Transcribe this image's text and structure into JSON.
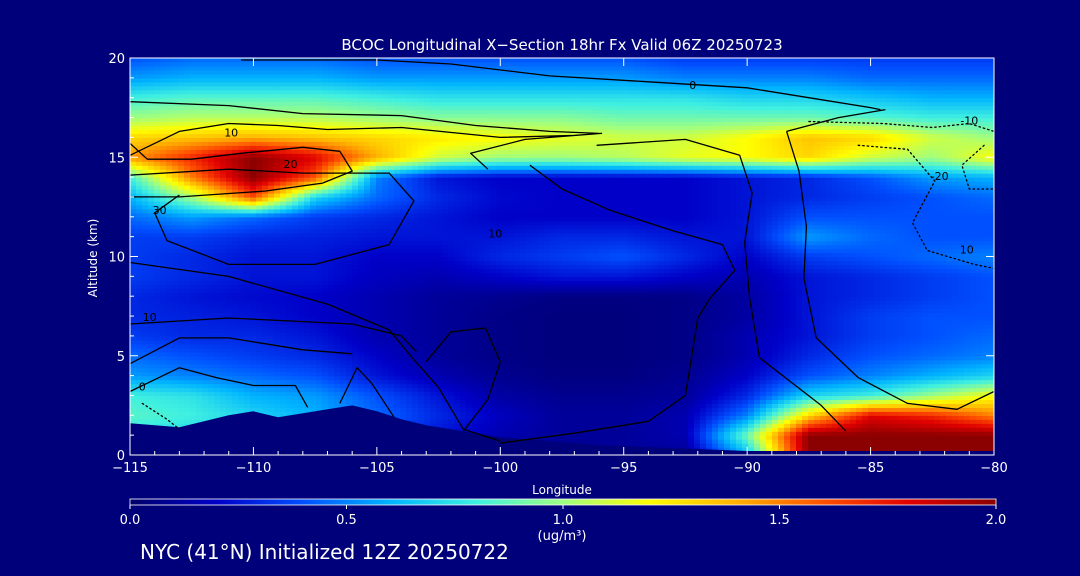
{
  "footer": "NYC (41°N) Initialized 12Z 20250722",
  "colors": {
    "background": "#00007a",
    "contour": "#000000",
    "text": "#ffffff"
  },
  "chart_data": {
    "type": "heatmap",
    "title": "BCOC Longitudinal X−Section 18hr  Fx Valid 06Z 20250723",
    "xlabel": "Longitude",
    "ylabel": "Altitude (km)",
    "xlim": [
      -115,
      -80
    ],
    "ylim": [
      0,
      20
    ],
    "xticks": [
      -115,
      -110,
      -105,
      -100,
      -95,
      -90,
      -85,
      -80
    ],
    "xtick_labels": [
      "−115",
      "−110",
      "−105",
      "−100",
      "−95",
      "−90",
      "−85",
      "−80"
    ],
    "yticks": [
      0,
      5,
      10,
      15,
      20
    ],
    "ytick_labels": [
      "0",
      "5",
      "10",
      "15",
      "20"
    ],
    "colorbar": {
      "min": 0.0,
      "max": 2.0,
      "ticks": [
        0.0,
        0.5,
        1.0,
        1.5,
        2.0
      ],
      "tick_labels": [
        "0.0",
        "0.5",
        "1.0",
        "1.5",
        "2.0"
      ],
      "label": "(ug/m³)",
      "colormap": [
        "#00006a",
        "#0000c8",
        "#0050ff",
        "#00b4ff",
        "#40f0e0",
        "#a0ff80",
        "#ffff00",
        "#ffb000",
        "#ff5000",
        "#e00000",
        "#8b0000"
      ]
    },
    "contour_labels": [
      {
        "text": "0",
        "lon": -92.2,
        "alt": 18.6
      },
      {
        "text": "10",
        "lon": -110.9,
        "alt": 16.2
      },
      {
        "text": "20",
        "lon": -108.5,
        "alt": 14.6
      },
      {
        "text": "30",
        "lon": -113.8,
        "alt": 12.3
      },
      {
        "text": "10",
        "lon": -100.2,
        "alt": 11.1
      },
      {
        "text": "10",
        "lon": -114.2,
        "alt": 6.9
      },
      {
        "text": "0",
        "lon": -114.5,
        "alt": 3.4
      },
      {
        "text": "-10",
        "lon": -81.0,
        "alt": 16.8
      },
      {
        "text": "-20",
        "lon": -82.2,
        "alt": 14.0
      },
      {
        "text": "10",
        "lon": -81.1,
        "alt": 10.3
      }
    ],
    "field": {
      "lon": [
        -115,
        -112.5,
        -110,
        -107.5,
        -105,
        -102.5,
        -100,
        -97.5,
        -95,
        -92.5,
        -90,
        -87.5,
        -85,
        -82.5,
        -80
      ],
      "alt": [
        0,
        1,
        2,
        3,
        4,
        5,
        6,
        7,
        8,
        9,
        10,
        11,
        12,
        13,
        14,
        15,
        16,
        17,
        18,
        19,
        20
      ],
      "values": [
        [
          0.4,
          0.45,
          0.42,
          0.35,
          0.3,
          0.18,
          0.12,
          0.08,
          0.1,
          0.1,
          0.6,
          2.0,
          2.0,
          2.0,
          2.0
        ],
        [
          0.75,
          0.7,
          0.65,
          0.55,
          0.4,
          0.25,
          0.15,
          0.1,
          0.1,
          0.15,
          0.9,
          2.0,
          2.0,
          2.0,
          2.0
        ],
        [
          0.85,
          0.8,
          0.7,
          0.6,
          0.45,
          0.3,
          0.18,
          0.1,
          0.1,
          0.15,
          0.5,
          1.3,
          1.8,
          1.7,
          1.5
        ],
        [
          0.8,
          0.75,
          0.6,
          0.55,
          0.4,
          0.25,
          0.12,
          0.08,
          0.08,
          0.1,
          0.3,
          0.7,
          0.8,
          1.0,
          1.2
        ],
        [
          0.55,
          0.5,
          0.45,
          0.4,
          0.25,
          0.15,
          0.08,
          0.05,
          0.05,
          0.08,
          0.2,
          0.4,
          0.5,
          0.6,
          0.7
        ],
        [
          0.45,
          0.4,
          0.35,
          0.3,
          0.2,
          0.1,
          0.06,
          0.04,
          0.04,
          0.06,
          0.15,
          0.3,
          0.4,
          0.45,
          0.5
        ],
        [
          0.35,
          0.3,
          0.3,
          0.25,
          0.15,
          0.1,
          0.06,
          0.04,
          0.04,
          0.06,
          0.15,
          0.25,
          0.35,
          0.4,
          0.45
        ],
        [
          0.3,
          0.28,
          0.25,
          0.2,
          0.15,
          0.1,
          0.06,
          0.04,
          0.04,
          0.06,
          0.12,
          0.25,
          0.35,
          0.4,
          0.4
        ],
        [
          0.3,
          0.25,
          0.22,
          0.2,
          0.15,
          0.1,
          0.08,
          0.05,
          0.05,
          0.06,
          0.12,
          0.25,
          0.3,
          0.35,
          0.4
        ],
        [
          0.35,
          0.3,
          0.25,
          0.25,
          0.18,
          0.15,
          0.2,
          0.25,
          0.25,
          0.2,
          0.15,
          0.25,
          0.3,
          0.35,
          0.4
        ],
        [
          0.35,
          0.3,
          0.25,
          0.25,
          0.2,
          0.2,
          0.3,
          0.35,
          0.4,
          0.3,
          0.2,
          0.35,
          0.4,
          0.45,
          0.5
        ],
        [
          0.35,
          0.35,
          0.3,
          0.28,
          0.25,
          0.25,
          0.25,
          0.3,
          0.3,
          0.25,
          0.25,
          0.55,
          0.45,
          0.4,
          0.4
        ],
        [
          0.45,
          0.55,
          0.45,
          0.35,
          0.3,
          0.25,
          0.2,
          0.2,
          0.2,
          0.2,
          0.25,
          0.4,
          0.4,
          0.4,
          0.4
        ],
        [
          0.6,
          1.0,
          1.6,
          0.7,
          0.45,
          0.3,
          0.22,
          0.2,
          0.2,
          0.2,
          0.25,
          0.3,
          0.35,
          0.4,
          0.45
        ],
        [
          0.8,
          1.5,
          2.0,
          1.6,
          0.5,
          0.25,
          0.2,
          0.2,
          0.2,
          0.2,
          0.25,
          0.3,
          0.4,
          0.55,
          0.6
        ],
        [
          1.45,
          1.7,
          2.0,
          1.8,
          1.4,
          1.1,
          1.0,
          1.0,
          1.05,
          1.15,
          1.2,
          1.3,
          1.1,
          1.0,
          1.2
        ],
        [
          1.3,
          1.35,
          1.4,
          1.35,
          1.3,
          1.25,
          1.2,
          1.15,
          1.1,
          1.1,
          1.2,
          1.35,
          1.3,
          1.1,
          1.0
        ],
        [
          1.0,
          1.05,
          1.05,
          1.05,
          1.0,
          0.95,
          0.95,
          0.95,
          0.9,
          0.9,
          0.9,
          0.9,
          0.85,
          0.8,
          0.8
        ],
        [
          0.8,
          0.85,
          0.85,
          0.85,
          0.8,
          0.75,
          0.75,
          0.75,
          0.75,
          0.75,
          0.7,
          0.7,
          0.65,
          0.6,
          0.6
        ],
        [
          0.55,
          0.6,
          0.6,
          0.6,
          0.55,
          0.55,
          0.55,
          0.55,
          0.55,
          0.5,
          0.5,
          0.5,
          0.45,
          0.45,
          0.45
        ],
        [
          0.4,
          0.45,
          0.45,
          0.45,
          0.4,
          0.4,
          0.4,
          0.4,
          0.4,
          0.35,
          0.35,
          0.35,
          0.35,
          0.35,
          0.35
        ]
      ]
    },
    "terrain": {
      "lon": [
        -115,
        -114,
        -113,
        -112,
        -111,
        -110,
        -109,
        -108,
        -107,
        -106,
        -105,
        -104,
        -103,
        -102,
        -101,
        -100,
        -99,
        -98,
        -97,
        -96,
        -95,
        -94,
        -93,
        -92,
        -91,
        -90,
        -89,
        -88,
        -87,
        -86,
        -85,
        -84,
        -83,
        -82,
        -81,
        -80
      ],
      "alt": [
        1.6,
        1.5,
        1.4,
        1.7,
        2.0,
        2.2,
        1.9,
        2.1,
        2.3,
        2.5,
        2.2,
        1.8,
        1.5,
        1.3,
        1.1,
        0.9,
        0.8,
        0.7,
        0.6,
        0.5,
        0.45,
        0.4,
        0.35,
        0.3,
        0.25,
        0.2,
        0.2,
        0.2,
        0.2,
        0.2,
        0.2,
        0.2,
        0.2,
        0.2,
        0.2,
        0.2
      ]
    },
    "contours": [
      {
        "style": "solid",
        "points": [
          [
            -110.5,
            19.9
          ],
          [
            -105,
            19.9
          ],
          [
            -102,
            19.7
          ],
          [
            -98,
            19.1
          ],
          [
            -94,
            18.8
          ],
          [
            -90,
            18.5
          ],
          [
            -87,
            17.9
          ],
          [
            -85,
            17.5
          ],
          [
            -84.6,
            17.4
          ]
        ]
      },
      {
        "style": "solid",
        "points": [
          [
            -115,
            17.8
          ],
          [
            -111,
            17.6
          ],
          [
            -108,
            17.2
          ],
          [
            -104,
            17.1
          ],
          [
            -101,
            16.6
          ],
          [
            -98,
            16.3
          ],
          [
            -96,
            16.2
          ]
        ]
      },
      {
        "style": "solid",
        "points": [
          [
            -115,
            15.1
          ],
          [
            -113,
            16.3
          ],
          [
            -111,
            16.7
          ],
          [
            -109,
            16.6
          ],
          [
            -107,
            16.4
          ],
          [
            -104,
            16.5
          ],
          [
            -100,
            16.0
          ],
          [
            -97,
            16.1
          ],
          [
            -95.9,
            16.2
          ],
          [
            -99,
            15.9
          ],
          [
            -101.2,
            15.2
          ],
          [
            -100.5,
            14.4
          ]
        ]
      },
      {
        "style": "solid",
        "points": [
          [
            -115,
            15.7
          ],
          [
            -114.3,
            14.9
          ],
          [
            -112.5,
            14.9
          ],
          [
            -110.5,
            15.2
          ],
          [
            -108,
            15.5
          ],
          [
            -106.5,
            15.3
          ],
          [
            -106,
            14.3
          ],
          [
            -107.2,
            13.7
          ],
          [
            -109.5,
            13.3
          ],
          [
            -113,
            13.0
          ],
          [
            -115,
            13.0
          ]
        ]
      },
      {
        "style": "solid",
        "points": [
          [
            -115,
            14.1
          ],
          [
            -111,
            14.4
          ],
          [
            -108,
            14.2
          ],
          [
            -104.5,
            14.2
          ],
          [
            -103.5,
            12.8
          ],
          [
            -104.5,
            10.6
          ],
          [
            -107.5,
            9.6
          ],
          [
            -111,
            9.6
          ],
          [
            -113.5,
            10.8
          ],
          [
            -114,
            12.2
          ],
          [
            -113,
            13.1
          ]
        ]
      },
      {
        "style": "solid",
        "points": [
          [
            -115,
            9.7
          ],
          [
            -111,
            9.0
          ],
          [
            -107,
            7.6
          ],
          [
            -104.5,
            6.3
          ],
          [
            -103.5,
            4.8
          ],
          [
            -102.5,
            3.4
          ],
          [
            -101.5,
            1.3
          ],
          [
            -100,
            0.7
          ]
        ]
      },
      {
        "style": "solid",
        "points": [
          [
            -103,
            4.7
          ],
          [
            -102,
            6.2
          ],
          [
            -100.6,
            6.4
          ],
          [
            -100,
            4.7
          ],
          [
            -100.5,
            2.8
          ],
          [
            -101.5,
            1.2
          ]
        ]
      },
      {
        "style": "solid",
        "points": [
          [
            -98.8,
            14.6
          ],
          [
            -97.5,
            13.4
          ],
          [
            -95.5,
            12.3
          ],
          [
            -93,
            11.3
          ],
          [
            -91,
            10.6
          ],
          [
            -90.5,
            9.3
          ],
          [
            -91.5,
            7.9
          ],
          [
            -92,
            6.9
          ],
          [
            -92.5,
            3.0
          ],
          [
            -94,
            1.7
          ],
          [
            -97,
            1.1
          ],
          [
            -100,
            0.6
          ]
        ]
      },
      {
        "style": "solid",
        "points": [
          [
            -96.1,
            15.6
          ],
          [
            -92.5,
            15.9
          ],
          [
            -90.3,
            15.1
          ],
          [
            -89.8,
            13.2
          ],
          [
            -90.1,
            10.7
          ],
          [
            -89.9,
            7.9
          ],
          [
            -89.5,
            4.9
          ],
          [
            -87,
            2.5
          ],
          [
            -86,
            1.2
          ]
        ]
      },
      {
        "style": "solid",
        "points": [
          [
            -88.4,
            16.3
          ],
          [
            -86.3,
            17.0
          ],
          [
            -84.4,
            17.4
          ]
        ]
      },
      {
        "style": "solid",
        "points": [
          [
            -88.4,
            16.3
          ],
          [
            -87.9,
            14.3
          ],
          [
            -87.6,
            11.5
          ],
          [
            -87.7,
            8.9
          ],
          [
            -87.2,
            5.9
          ],
          [
            -85.5,
            3.9
          ],
          [
            -83.5,
            2.6
          ],
          [
            -81.5,
            2.3
          ],
          [
            -80,
            3.2
          ]
        ]
      },
      {
        "style": "solid",
        "points": [
          [
            -115,
            6.6
          ],
          [
            -111,
            6.9
          ],
          [
            -106,
            6.6
          ],
          [
            -104,
            6.0
          ],
          [
            -103.4,
            5.2
          ]
        ]
      },
      {
        "style": "solid",
        "points": [
          [
            -115,
            4.6
          ],
          [
            -113,
            5.9
          ],
          [
            -111,
            5.9
          ],
          [
            -108,
            5.3
          ],
          [
            -106,
            5.1
          ]
        ]
      },
      {
        "style": "solid",
        "points": [
          [
            -115,
            3.2
          ],
          [
            -113,
            4.4
          ],
          [
            -111.5,
            3.9
          ],
          [
            -110,
            3.5
          ],
          [
            -108.3,
            3.5
          ],
          [
            -107.8,
            2.4
          ]
        ]
      },
      {
        "style": "solid",
        "points": [
          [
            -106.5,
            2.6
          ],
          [
            -105.8,
            4.4
          ],
          [
            -105.2,
            3.6
          ],
          [
            -104.3,
            1.9
          ]
        ]
      },
      {
        "style": "dotted",
        "points": [
          [
            -87.5,
            16.8
          ],
          [
            -84.5,
            16.7
          ],
          [
            -82.5,
            16.5
          ],
          [
            -81,
            16.7
          ],
          [
            -80,
            16.3
          ]
        ]
      },
      {
        "style": "dotted",
        "points": [
          [
            -85.5,
            15.6
          ],
          [
            -83.5,
            15.4
          ],
          [
            -82.4,
            13.8
          ],
          [
            -83.3,
            11.7
          ],
          [
            -82.7,
            10.3
          ],
          [
            -80.8,
            9.6
          ],
          [
            -80,
            9.4
          ]
        ]
      },
      {
        "style": "dotted",
        "points": [
          [
            -80.4,
            15.6
          ],
          [
            -81.3,
            14.6
          ],
          [
            -81.0,
            13.4
          ],
          [
            -80,
            13.4
          ]
        ]
      },
      {
        "style": "dotted",
        "points": [
          [
            -114.5,
            2.6
          ],
          [
            -113.5,
            1.8
          ],
          [
            -113.0,
            1.3
          ]
        ]
      }
    ]
  }
}
